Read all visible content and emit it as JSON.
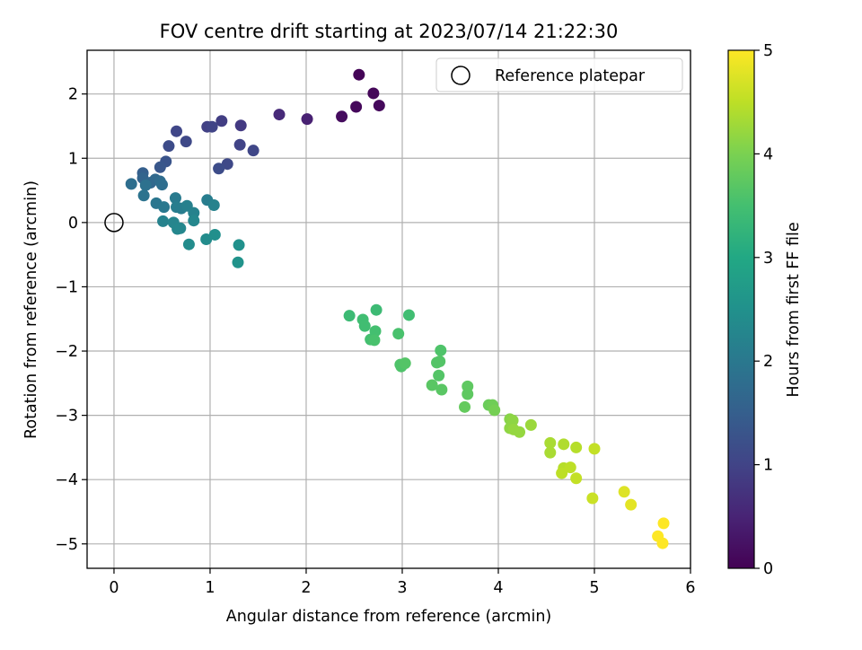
{
  "chart_data": {
    "type": "scatter",
    "title": "FOV centre drift starting at 2023/07/14 21:22:30",
    "xlabel": "Angular distance from reference (arcmin)",
    "ylabel": "Rotation from reference (arcmin)",
    "xlim": [
      -0.28,
      6.0
    ],
    "ylim": [
      -5.38,
      2.68
    ],
    "xticks": [
      0,
      1,
      2,
      3,
      4,
      5,
      6
    ],
    "yticks": [
      -5,
      -4,
      -3,
      -2,
      -1,
      0,
      1,
      2
    ],
    "grid": true,
    "legend": {
      "position": "top-right",
      "entries": [
        "Reference platepar"
      ]
    },
    "colorbar": {
      "label": "Hours from first FF file",
      "range": [
        0,
        5
      ],
      "ticks": [
        0,
        1,
        2,
        3,
        4,
        5
      ],
      "colormap": "viridis"
    },
    "reference_point": {
      "x": 0,
      "y": 0,
      "label": "Reference platepar"
    },
    "points": [
      {
        "x": 2.55,
        "y": 2.3,
        "c": 0.05
      },
      {
        "x": 2.7,
        "y": 2.01,
        "c": 0.08
      },
      {
        "x": 2.52,
        "y": 1.8,
        "c": 0.1
      },
      {
        "x": 2.76,
        "y": 1.82,
        "c": 0.12
      },
      {
        "x": 2.37,
        "y": 1.65,
        "c": 0.15
      },
      {
        "x": 2.01,
        "y": 1.61,
        "c": 0.45
      },
      {
        "x": 1.72,
        "y": 1.68,
        "c": 0.6
      },
      {
        "x": 1.32,
        "y": 1.51,
        "c": 0.85
      },
      {
        "x": 1.12,
        "y": 1.58,
        "c": 0.9
      },
      {
        "x": 0.97,
        "y": 1.49,
        "c": 0.95
      },
      {
        "x": 1.02,
        "y": 1.49,
        "c": 1.0
      },
      {
        "x": 0.65,
        "y": 1.42,
        "c": 1.05
      },
      {
        "x": 0.75,
        "y": 1.26,
        "c": 1.1
      },
      {
        "x": 0.57,
        "y": 1.19,
        "c": 1.15
      },
      {
        "x": 1.31,
        "y": 1.21,
        "c": 1.0
      },
      {
        "x": 1.45,
        "y": 1.12,
        "c": 1.05
      },
      {
        "x": 1.18,
        "y": 0.91,
        "c": 1.1
      },
      {
        "x": 1.09,
        "y": 0.84,
        "c": 1.15
      },
      {
        "x": 0.54,
        "y": 0.95,
        "c": 1.3
      },
      {
        "x": 0.48,
        "y": 0.86,
        "c": 1.35
      },
      {
        "x": 0.3,
        "y": 0.77,
        "c": 1.5
      },
      {
        "x": 0.3,
        "y": 0.69,
        "c": 1.6
      },
      {
        "x": 0.38,
        "y": 0.62,
        "c": 1.65
      },
      {
        "x": 0.43,
        "y": 0.67,
        "c": 1.7
      },
      {
        "x": 0.18,
        "y": 0.6,
        "c": 1.8
      },
      {
        "x": 0.33,
        "y": 0.58,
        "c": 1.85
      },
      {
        "x": 0.48,
        "y": 0.64,
        "c": 1.75
      },
      {
        "x": 0.5,
        "y": 0.59,
        "c": 1.8
      },
      {
        "x": 0.31,
        "y": 0.42,
        "c": 1.9
      },
      {
        "x": 0.44,
        "y": 0.3,
        "c": 1.95
      },
      {
        "x": 0.52,
        "y": 0.24,
        "c": 2.0
      },
      {
        "x": 0.64,
        "y": 0.38,
        "c": 2.05
      },
      {
        "x": 0.65,
        "y": 0.24,
        "c": 2.1
      },
      {
        "x": 0.7,
        "y": 0.22,
        "c": 2.1
      },
      {
        "x": 0.76,
        "y": 0.26,
        "c": 2.15
      },
      {
        "x": 0.83,
        "y": 0.15,
        "c": 2.2
      },
      {
        "x": 0.97,
        "y": 0.35,
        "c": 2.1
      },
      {
        "x": 1.04,
        "y": 0.27,
        "c": 2.2
      },
      {
        "x": 0.51,
        "y": 0.02,
        "c": 2.2
      },
      {
        "x": 0.62,
        "y": 0.0,
        "c": 2.25
      },
      {
        "x": 0.66,
        "y": -0.1,
        "c": 2.3
      },
      {
        "x": 0.69,
        "y": -0.09,
        "c": 2.3
      },
      {
        "x": 0.83,
        "y": 0.03,
        "c": 2.3
      },
      {
        "x": 0.78,
        "y": -0.34,
        "c": 2.4
      },
      {
        "x": 0.96,
        "y": -0.26,
        "c": 2.4
      },
      {
        "x": 1.05,
        "y": -0.19,
        "c": 2.45
      },
      {
        "x": 1.3,
        "y": -0.35,
        "c": 2.5
      },
      {
        "x": 1.29,
        "y": -0.62,
        "c": 2.55
      },
      {
        "x": 2.45,
        "y": -1.45,
        "c": 3.4
      },
      {
        "x": 2.59,
        "y": -1.51,
        "c": 3.45
      },
      {
        "x": 2.61,
        "y": -1.61,
        "c": 3.45
      },
      {
        "x": 2.73,
        "y": -1.36,
        "c": 3.4
      },
      {
        "x": 2.72,
        "y": -1.69,
        "c": 3.5
      },
      {
        "x": 2.67,
        "y": -1.82,
        "c": 3.5
      },
      {
        "x": 2.71,
        "y": -1.83,
        "c": 3.55
      },
      {
        "x": 2.96,
        "y": -1.73,
        "c": 3.55
      },
      {
        "x": 3.07,
        "y": -1.44,
        "c": 3.45
      },
      {
        "x": 3.4,
        "y": -1.99,
        "c": 3.6
      },
      {
        "x": 3.36,
        "y": -2.18,
        "c": 3.65
      },
      {
        "x": 3.39,
        "y": -2.16,
        "c": 3.65
      },
      {
        "x": 2.98,
        "y": -2.21,
        "c": 3.6
      },
      {
        "x": 2.99,
        "y": -2.24,
        "c": 3.6
      },
      {
        "x": 3.03,
        "y": -2.19,
        "c": 3.65
      },
      {
        "x": 3.38,
        "y": -2.38,
        "c": 3.65
      },
      {
        "x": 3.31,
        "y": -2.53,
        "c": 3.7
      },
      {
        "x": 3.41,
        "y": -2.6,
        "c": 3.7
      },
      {
        "x": 3.68,
        "y": -2.55,
        "c": 3.75
      },
      {
        "x": 3.68,
        "y": -2.67,
        "c": 3.75
      },
      {
        "x": 3.65,
        "y": -2.87,
        "c": 3.8
      },
      {
        "x": 3.9,
        "y": -2.84,
        "c": 3.85
      },
      {
        "x": 3.94,
        "y": -2.84,
        "c": 3.9
      },
      {
        "x": 3.96,
        "y": -2.92,
        "c": 3.95
      },
      {
        "x": 4.12,
        "y": -3.06,
        "c": 4.1
      },
      {
        "x": 4.15,
        "y": -3.08,
        "c": 4.15
      },
      {
        "x": 4.12,
        "y": -3.2,
        "c": 4.15
      },
      {
        "x": 4.16,
        "y": -3.22,
        "c": 4.2
      },
      {
        "x": 4.22,
        "y": -3.26,
        "c": 4.2
      },
      {
        "x": 4.34,
        "y": -3.15,
        "c": 4.25
      },
      {
        "x": 4.54,
        "y": -3.43,
        "c": 4.35
      },
      {
        "x": 4.54,
        "y": -3.58,
        "c": 4.35
      },
      {
        "x": 4.68,
        "y": -3.45,
        "c": 4.4
      },
      {
        "x": 4.81,
        "y": -3.5,
        "c": 4.45
      },
      {
        "x": 5.0,
        "y": -3.52,
        "c": 4.55
      },
      {
        "x": 4.68,
        "y": -3.82,
        "c": 4.45
      },
      {
        "x": 4.66,
        "y": -3.9,
        "c": 4.5
      },
      {
        "x": 4.75,
        "y": -3.81,
        "c": 4.5
      },
      {
        "x": 4.81,
        "y": -3.98,
        "c": 4.55
      },
      {
        "x": 4.98,
        "y": -4.29,
        "c": 4.6
      },
      {
        "x": 5.31,
        "y": -4.19,
        "c": 4.75
      },
      {
        "x": 5.38,
        "y": -4.39,
        "c": 4.8
      },
      {
        "x": 5.72,
        "y": -4.68,
        "c": 5.0
      },
      {
        "x": 5.66,
        "y": -4.88,
        "c": 5.0
      },
      {
        "x": 5.71,
        "y": -4.99,
        "c": 5.0
      }
    ]
  }
}
